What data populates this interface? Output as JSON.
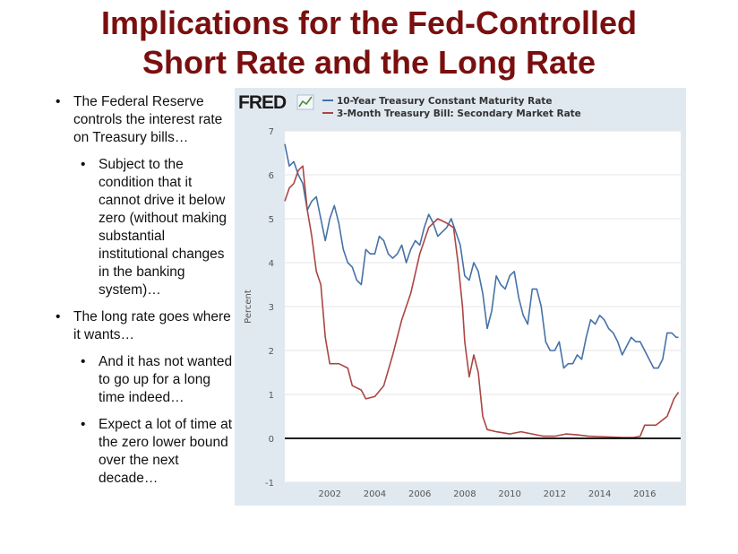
{
  "slide": {
    "title_line1": "Implications for the Fed-Controlled",
    "title_line2": "Short Rate and the Long Rate",
    "bullets": [
      {
        "level": 1,
        "text": "The Federal Reserve controls the interest rate on Treasury bills…"
      },
      {
        "level": 2,
        "text": "Subject to the condition that it cannot drive it below zero (without making substantial institutional changes in the banking system)…"
      },
      {
        "level": 1,
        "text": "The long rate goes where it wants…"
      },
      {
        "level": 2,
        "text": "And it has not wanted to go up for a long time indeed…"
      },
      {
        "level": 2,
        "text": "Expect a lot of time at the zero lower bound over the next decade…"
      }
    ]
  },
  "chart_logo": "FRED",
  "colors": {
    "title": "#7a0f0f",
    "series_10y": "#4572a7",
    "series_3m": "#aa4643",
    "panel_bg": "#e1e9f0",
    "plot_bg": "#ffffff"
  },
  "chart_data": {
    "type": "line",
    "ylabel": "Percent",
    "ylim": [
      -1,
      7
    ],
    "yticks": [
      "7",
      "6",
      "5",
      "4",
      "3",
      "2",
      "1",
      "0",
      "-1"
    ],
    "xlim": [
      2000.0,
      2017.6
    ],
    "xticks": [
      "2002",
      "2004",
      "2006",
      "2008",
      "2010",
      "2012",
      "2014",
      "2016"
    ],
    "grid": true,
    "legend_position": "top-left",
    "zero_line": true,
    "series": [
      {
        "name": "10-Year Treasury Constant Maturity Rate",
        "color": "#4572a7",
        "points": [
          [
            2000.0,
            6.7
          ],
          [
            2000.2,
            6.2
          ],
          [
            2000.4,
            6.3
          ],
          [
            2000.6,
            6.0
          ],
          [
            2000.8,
            5.8
          ],
          [
            2001.0,
            5.2
          ],
          [
            2001.2,
            5.4
          ],
          [
            2001.4,
            5.5
          ],
          [
            2001.6,
            5.0
          ],
          [
            2001.8,
            4.5
          ],
          [
            2002.0,
            5.0
          ],
          [
            2002.2,
            5.3
          ],
          [
            2002.4,
            4.9
          ],
          [
            2002.6,
            4.3
          ],
          [
            2002.8,
            4.0
          ],
          [
            2003.0,
            3.9
          ],
          [
            2003.2,
            3.6
          ],
          [
            2003.4,
            3.5
          ],
          [
            2003.6,
            4.3
          ],
          [
            2003.8,
            4.2
          ],
          [
            2004.0,
            4.2
          ],
          [
            2004.2,
            4.6
          ],
          [
            2004.4,
            4.5
          ],
          [
            2004.6,
            4.2
          ],
          [
            2004.8,
            4.1
          ],
          [
            2005.0,
            4.2
          ],
          [
            2005.2,
            4.4
          ],
          [
            2005.4,
            4.0
          ],
          [
            2005.6,
            4.3
          ],
          [
            2005.8,
            4.5
          ],
          [
            2006.0,
            4.4
          ],
          [
            2006.2,
            4.8
          ],
          [
            2006.4,
            5.1
          ],
          [
            2006.6,
            4.9
          ],
          [
            2006.8,
            4.6
          ],
          [
            2007.0,
            4.7
          ],
          [
            2007.2,
            4.8
          ],
          [
            2007.4,
            5.0
          ],
          [
            2007.6,
            4.7
          ],
          [
            2007.8,
            4.4
          ],
          [
            2008.0,
            3.7
          ],
          [
            2008.2,
            3.6
          ],
          [
            2008.4,
            4.0
          ],
          [
            2008.6,
            3.8
          ],
          [
            2008.8,
            3.3
          ],
          [
            2009.0,
            2.5
          ],
          [
            2009.2,
            2.9
          ],
          [
            2009.4,
            3.7
          ],
          [
            2009.6,
            3.5
          ],
          [
            2009.8,
            3.4
          ],
          [
            2010.0,
            3.7
          ],
          [
            2010.2,
            3.8
          ],
          [
            2010.4,
            3.2
          ],
          [
            2010.6,
            2.8
          ],
          [
            2010.8,
            2.6
          ],
          [
            2011.0,
            3.4
          ],
          [
            2011.2,
            3.4
          ],
          [
            2011.4,
            3.0
          ],
          [
            2011.6,
            2.2
          ],
          [
            2011.8,
            2.0
          ],
          [
            2012.0,
            2.0
          ],
          [
            2012.2,
            2.2
          ],
          [
            2012.4,
            1.6
          ],
          [
            2012.6,
            1.7
          ],
          [
            2012.8,
            1.7
          ],
          [
            2013.0,
            1.9
          ],
          [
            2013.2,
            1.8
          ],
          [
            2013.4,
            2.3
          ],
          [
            2013.6,
            2.7
          ],
          [
            2013.8,
            2.6
          ],
          [
            2014.0,
            2.8
          ],
          [
            2014.2,
            2.7
          ],
          [
            2014.4,
            2.5
          ],
          [
            2014.6,
            2.4
          ],
          [
            2014.8,
            2.2
          ],
          [
            2015.0,
            1.9
          ],
          [
            2015.2,
            2.1
          ],
          [
            2015.4,
            2.3
          ],
          [
            2015.6,
            2.2
          ],
          [
            2015.8,
            2.2
          ],
          [
            2016.0,
            2.0
          ],
          [
            2016.2,
            1.8
          ],
          [
            2016.4,
            1.6
          ],
          [
            2016.6,
            1.6
          ],
          [
            2016.8,
            1.8
          ],
          [
            2017.0,
            2.4
          ],
          [
            2017.2,
            2.4
          ],
          [
            2017.4,
            2.3
          ],
          [
            2017.5,
            2.3
          ]
        ]
      },
      {
        "name": "3-Month Treasury Bill: Secondary Market Rate",
        "color": "#aa4643",
        "points": [
          [
            2000.0,
            5.4
          ],
          [
            2000.2,
            5.7
          ],
          [
            2000.4,
            5.8
          ],
          [
            2000.6,
            6.1
          ],
          [
            2000.8,
            6.2
          ],
          [
            2001.0,
            5.2
          ],
          [
            2001.2,
            4.6
          ],
          [
            2001.4,
            3.8
          ],
          [
            2001.6,
            3.5
          ],
          [
            2001.8,
            2.3
          ],
          [
            2002.0,
            1.7
          ],
          [
            2002.4,
            1.7
          ],
          [
            2002.8,
            1.6
          ],
          [
            2003.0,
            1.2
          ],
          [
            2003.4,
            1.1
          ],
          [
            2003.6,
            0.9
          ],
          [
            2004.0,
            0.95
          ],
          [
            2004.4,
            1.2
          ],
          [
            2004.8,
            1.9
          ],
          [
            2005.2,
            2.7
          ],
          [
            2005.6,
            3.3
          ],
          [
            2006.0,
            4.2
          ],
          [
            2006.4,
            4.8
          ],
          [
            2006.8,
            5.0
          ],
          [
            2007.2,
            4.9
          ],
          [
            2007.5,
            4.8
          ],
          [
            2007.7,
            4.0
          ],
          [
            2007.9,
            3.0
          ],
          [
            2008.0,
            2.2
          ],
          [
            2008.2,
            1.4
          ],
          [
            2008.4,
            1.9
          ],
          [
            2008.6,
            1.5
          ],
          [
            2008.8,
            0.5
          ],
          [
            2009.0,
            0.2
          ],
          [
            2009.4,
            0.15
          ],
          [
            2010.0,
            0.1
          ],
          [
            2010.5,
            0.15
          ],
          [
            2011.0,
            0.1
          ],
          [
            2011.5,
            0.05
          ],
          [
            2012.0,
            0.05
          ],
          [
            2012.5,
            0.1
          ],
          [
            2013.0,
            0.08
          ],
          [
            2013.5,
            0.05
          ],
          [
            2014.0,
            0.04
          ],
          [
            2014.5,
            0.03
          ],
          [
            2015.0,
            0.02
          ],
          [
            2015.5,
            0.02
          ],
          [
            2015.8,
            0.05
          ],
          [
            2016.0,
            0.3
          ],
          [
            2016.5,
            0.3
          ],
          [
            2017.0,
            0.5
          ],
          [
            2017.3,
            0.9
          ],
          [
            2017.5,
            1.05
          ]
        ]
      }
    ]
  }
}
